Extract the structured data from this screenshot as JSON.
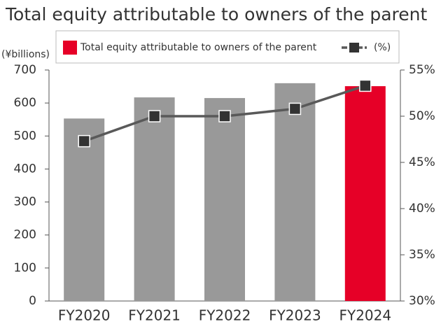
{
  "chart_data": {
    "type": "bar_line",
    "title": "Total equity attributable to owners of the parent",
    "y_label": "(¥billions)",
    "categories": [
      "FY2020",
      "FY2021",
      "FY2022",
      "FY2023",
      "FY2024"
    ],
    "series": [
      {
        "name": "Total equity attributable to owners of the parent",
        "color": "#e60027",
        "colors": [
          "#999999",
          "#999999",
          "#999999",
          "#999999",
          "#e60027"
        ],
        "values": [
          553,
          617,
          615,
          660,
          651
        ]
      },
      {
        "name": "(%)",
        "color": "#595959",
        "axis": "y2",
        "values": [
          47.3,
          50.0,
          50.0,
          50.8,
          53.3
        ]
      }
    ],
    "ylim": [
      0,
      700
    ],
    "yticks": [
      0,
      100,
      200,
      300,
      400,
      500,
      600,
      700
    ],
    "y2lim": [
      30,
      55
    ],
    "y2ticks": [
      {
        "value": 30,
        "label": "30%"
      },
      {
        "value": 35,
        "label": "35%"
      },
      {
        "value": 40,
        "label": "40%"
      },
      {
        "value": 45,
        "label": "45%"
      },
      {
        "value": 50,
        "label": "50%"
      },
      {
        "value": 55,
        "label": "55%"
      }
    ],
    "grid": false
  }
}
